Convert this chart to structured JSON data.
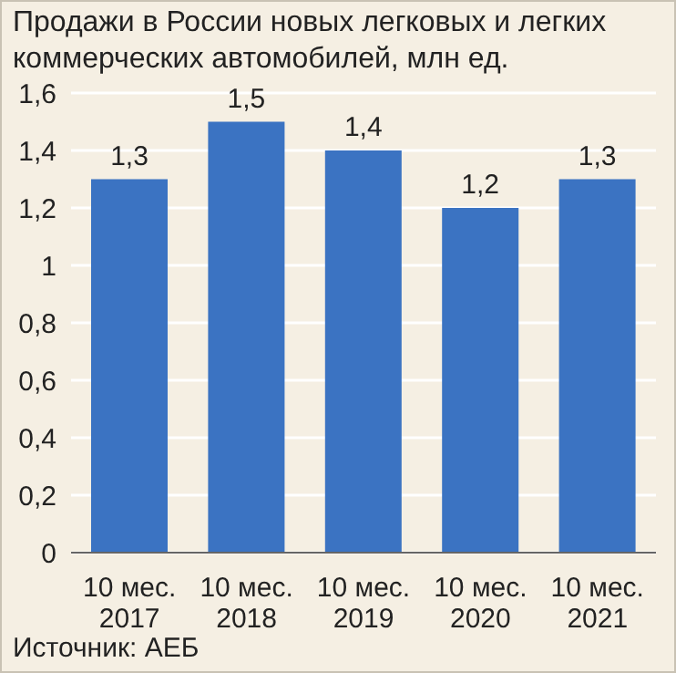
{
  "chart_data": {
    "type": "bar",
    "title": "Продажи в России новых легковых и легких коммерческих автомобилей, млн ед.",
    "categories": [
      "10 мес.\n2017",
      "10 мес.\n2018",
      "10 мес.\n2019",
      "10 мес.\n2020",
      "10 мес.\n2021"
    ],
    "values": [
      1.3,
      1.5,
      1.4,
      1.2,
      1.3
    ],
    "value_labels": [
      "1,3",
      "1,5",
      "1,4",
      "1,2",
      "1,3"
    ],
    "color": "#3b73c2",
    "ylim": [
      0,
      1.6
    ],
    "yticks": [
      0,
      {
        "value": 0.2,
        "label": "0,2"
      },
      {
        "value": 0.4,
        "label": "0,4"
      },
      {
        "value": 0.6,
        "label": "0,6"
      },
      {
        "value": 0.8,
        "label": "0,8"
      },
      1,
      {
        "value": 1.2,
        "label": "1,2"
      },
      {
        "value": 1.4,
        "label": "1,4"
      },
      {
        "value": 1.6,
        "label": "1,6"
      }
    ],
    "grid": "y",
    "annotations": [
      "Источник: АЕБ"
    ]
  }
}
